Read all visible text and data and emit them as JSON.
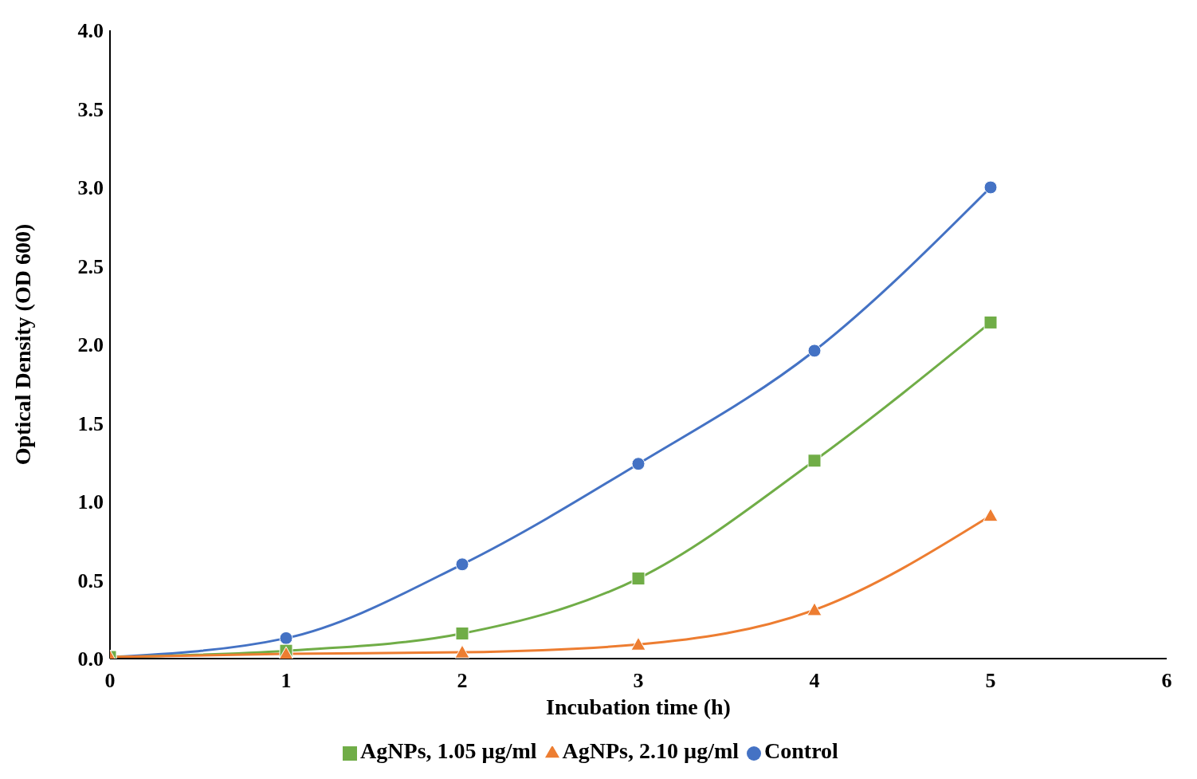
{
  "chart_data": {
    "type": "line",
    "xlabel": "Incubation time (h)",
    "ylabel": "Optical Density (OD 600)",
    "x": [
      0,
      1,
      2,
      3,
      4,
      5
    ],
    "series": [
      {
        "name": "Control",
        "color": "#4472c4",
        "marker": "circle",
        "values": [
          0.01,
          0.13,
          0.6,
          1.24,
          1.96,
          3.0
        ]
      },
      {
        "name": "AgNPs, 1.05 µg/ml",
        "color": "#70ad47",
        "marker": "square",
        "values": [
          0.01,
          0.05,
          0.16,
          0.51,
          1.26,
          2.14
        ]
      },
      {
        "name": "AgNPs, 2.10 µg/ml",
        "color": "#ed7d31",
        "marker": "triangle",
        "values": [
          0.01,
          0.03,
          0.04,
          0.09,
          0.31,
          0.91
        ]
      }
    ],
    "xlim": [
      0,
      6
    ],
    "xticks": [
      0,
      1,
      2,
      3,
      4,
      5,
      6
    ],
    "ylim": [
      0,
      4
    ],
    "yticks": [
      {
        "value": 0,
        "label": "0.0"
      },
      {
        "value": 0.5,
        "label": "0.5"
      },
      {
        "value": 1,
        "label": "1.0"
      },
      {
        "value": 1.5,
        "label": "1.5"
      },
      {
        "value": 2,
        "label": "2.0"
      },
      {
        "value": 2.5,
        "label": "2.5"
      },
      {
        "value": 3,
        "label": "3.0"
      },
      {
        "value": 3.5,
        "label": "3.5"
      },
      {
        "value": 4,
        "label": "4.0"
      }
    ],
    "grid": false,
    "legend": "bottom",
    "line_style": "solid"
  }
}
